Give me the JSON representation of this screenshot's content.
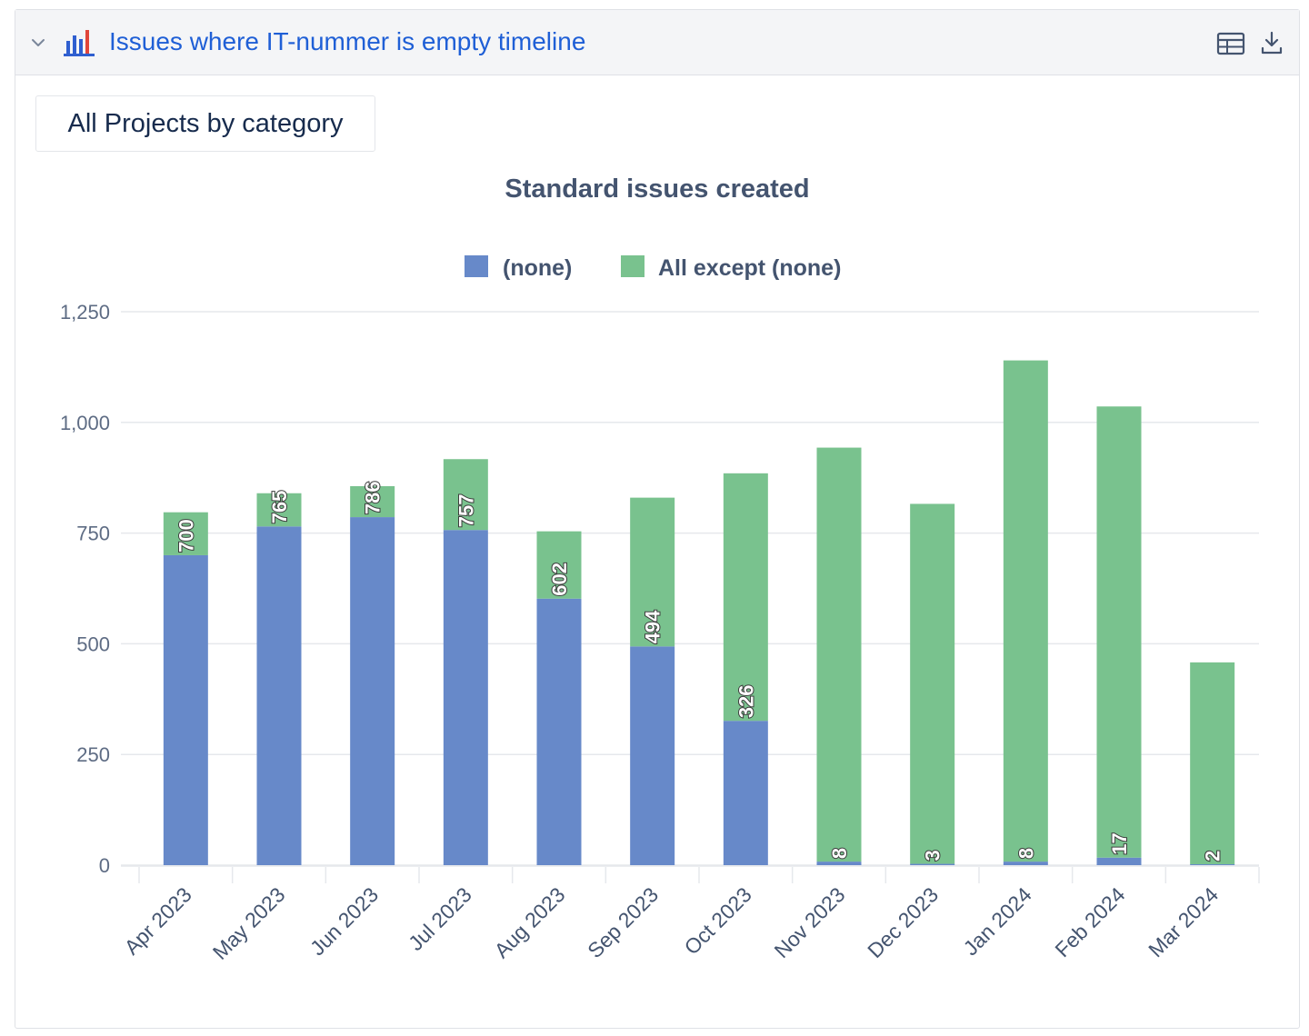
{
  "header": {
    "title": "Issues where IT-nummer is empty timeline",
    "chevron_icon": "chevron-down-icon",
    "report_icon": "bar-chart-icon",
    "table_icon": "table-icon",
    "download_icon": "download-icon"
  },
  "filter": {
    "label": "All Projects by category"
  },
  "colors": {
    "none": "#6789c9",
    "all_except_none": "#79c28e",
    "title_link": "#1f5fd6"
  },
  "chart_data": {
    "type": "bar",
    "stacked": true,
    "title": "Standard issues created",
    "legend_position": "top-center",
    "grid": true,
    "ylim": [
      0,
      1250
    ],
    "yticks": [
      "0",
      "250",
      "500",
      "750",
      "1,000",
      "1,250"
    ],
    "categories": [
      "Apr 2023",
      "May 2023",
      "Jun 2023",
      "Jul 2023",
      "Aug 2023",
      "Sep 2023",
      "Oct 2023",
      "Nov 2023",
      "Dec 2023",
      "Jan 2024",
      "Feb 2024",
      "Mar 2024"
    ],
    "series": [
      {
        "name": "(none)",
        "values": [
          700,
          765,
          786,
          757,
          602,
          494,
          326,
          8,
          3,
          8,
          17,
          2
        ]
      },
      {
        "name": "All except (none)",
        "values": [
          97,
          75,
          70,
          160,
          152,
          336,
          559,
          935,
          813,
          1132,
          1019,
          456
        ]
      }
    ]
  }
}
